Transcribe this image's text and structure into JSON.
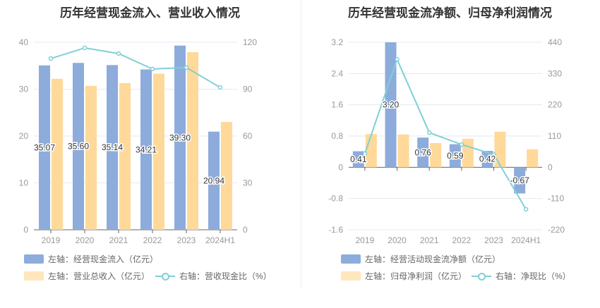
{
  "colors": {
    "blue": "#8dacdb",
    "orange": "#ffd99a",
    "line": "#7fd0d6",
    "grid": "#e6e9ef",
    "axis": "#666",
    "label": "#999"
  },
  "chart_data": [
    {
      "type": "bar",
      "title": "历年经营现金流入、营业收入情况",
      "categories": [
        "2019",
        "2020",
        "2021",
        "2022",
        "2023",
        "2024H1"
      ],
      "y_left": {
        "range": [
          0,
          40
        ],
        "ticks": [
          "0",
          "10",
          "20",
          "30",
          "40"
        ]
      },
      "y_right": {
        "range": [
          0,
          120
        ],
        "ticks": [
          "0",
          "30",
          "60",
          "90",
          "120"
        ]
      },
      "grid": true,
      "legend_placement": "bottom",
      "series": [
        {
          "name": "左轴：经营现金流入（亿元）",
          "type": "bar",
          "axis": "left",
          "color": "#8dacdb",
          "values": [
            35.07,
            35.6,
            35.14,
            34.21,
            39.3,
            20.94
          ],
          "labels": [
            "35.07",
            "35.60",
            "35.14",
            "34.21",
            "39.30",
            "20.94"
          ]
        },
        {
          "name": "左轴：营业总收入（亿元）",
          "type": "bar",
          "axis": "left",
          "color": "#ffd99a",
          "values": [
            32.2,
            30.7,
            31.3,
            33.3,
            37.9,
            23.0
          ]
        },
        {
          "name": "右轴：营收现金比（%）",
          "type": "line",
          "axis": "right",
          "color": "#7fd0d6",
          "values": [
            109.6,
            116.4,
            112.8,
            102.9,
            103.8,
            91.1
          ]
        }
      ]
    },
    {
      "type": "bar",
      "title": "历年经营现金流净额、归母净利润情况",
      "categories": [
        "2019",
        "2020",
        "2021",
        "2022",
        "2023",
        "2024H1"
      ],
      "y_left": {
        "range": [
          -1.6,
          3.2
        ],
        "ticks": [
          "-1.6",
          "-0.8",
          "0",
          "0.8",
          "1.6",
          "2.4",
          "3.2"
        ]
      },
      "y_right": {
        "range": [
          -220,
          440
        ],
        "ticks": [
          "-220",
          "-110",
          "0",
          "110",
          "220",
          "330",
          "440"
        ]
      },
      "grid": true,
      "legend_placement": "bottom",
      "series": [
        {
          "name": "左轴：经营活动现金流净额（亿元）",
          "type": "bar",
          "axis": "left",
          "color": "#8dacdb",
          "values": [
            0.41,
            3.2,
            0.76,
            0.59,
            0.42,
            -0.67
          ],
          "labels": [
            "0.41",
            "3.20",
            "0.76",
            "0.59",
            "0.42",
            "-0.67"
          ]
        },
        {
          "name": "左轴：归母净利润（亿元）",
          "type": "bar",
          "axis": "left",
          "color": "#ffd99a",
          "values": [
            0.85,
            0.84,
            0.62,
            0.73,
            0.91,
            0.46
          ]
        },
        {
          "name": "右轴：净现比（%）",
          "type": "line",
          "axis": "right",
          "color": "#7fd0d6",
          "values": [
            48,
            380,
            122,
            80,
            45,
            -148
          ]
        }
      ]
    }
  ]
}
